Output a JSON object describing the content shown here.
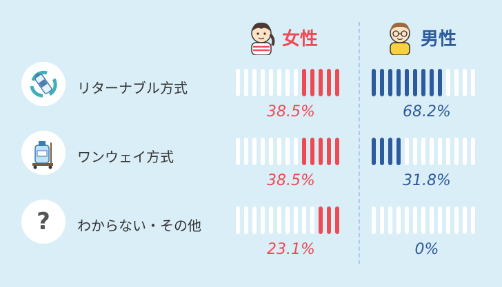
{
  "header": {
    "female_label": "女性",
    "male_label": "男性"
  },
  "chart_data": {
    "type": "bar",
    "categories": [
      "リターナブル方式",
      "ワンウェイ方式",
      "わからない・その他"
    ],
    "series": [
      {
        "name": "女性",
        "values": [
          38.5,
          38.5,
          23.1
        ],
        "labels": [
          "38.5%",
          "38.5%",
          "23.1%"
        ]
      },
      {
        "name": "男性",
        "values": [
          68.2,
          31.8,
          0
        ],
        "labels": [
          "68.2%",
          "31.8%",
          "0%"
        ]
      }
    ],
    "segments_per_bar": 13,
    "ylim": [
      0,
      100
    ],
    "colors": {
      "female": "#ee4a52",
      "male": "#2d5a9c",
      "empty": "#ffffff",
      "background": "#daeef8"
    },
    "icons": [
      "returnable-bottle-recycle-icon",
      "one-way-water-jug-icon",
      "question-mark-icon"
    ]
  }
}
